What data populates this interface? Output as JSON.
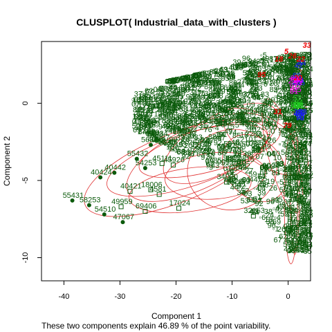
{
  "chart_data": {
    "type": "scatter",
    "title": "CLUSPLOT( Industrial_data_with_clusters )",
    "xlabel": "Component 1",
    "ylabel": "Component 2",
    "subtitle": "These two components explain 46.89 % of the point variability.",
    "xlim": [
      -44,
      4
    ],
    "ylim": [
      -11.5,
      4
    ],
    "xticks": [
      -40,
      -30,
      -20,
      -10,
      0
    ],
    "yticks": [
      -10,
      -5,
      0
    ],
    "grid": false,
    "colors": {
      "points": "#0b5a0b",
      "ellipses": "#e03030",
      "cluster_labels": "#ee0000",
      "accent_blue": "#1a1aff",
      "accent_magenta": "#ff00ff",
      "accent_green": "#22cc22"
    },
    "labeled_points": [
      {
        "label": "55431",
        "x": -38.5,
        "y": -6.3,
        "marker": "circle"
      },
      {
        "label": "58253",
        "x": -35.5,
        "y": -6.6,
        "marker": "circle"
      },
      {
        "label": "54510",
        "x": -32.8,
        "y": -7.2,
        "marker": "circle"
      },
      {
        "label": "49959",
        "x": -29.8,
        "y": -6.7,
        "marker": "square"
      },
      {
        "label": "47067",
        "x": -29.5,
        "y": -7.7,
        "marker": "circle"
      },
      {
        "label": "40442",
        "x": -31.0,
        "y": -4.5,
        "marker": "circle"
      },
      {
        "label": "40421",
        "x": -28.2,
        "y": -5.7,
        "marker": "square"
      },
      {
        "label": "40424",
        "x": -33.5,
        "y": -4.8,
        "marker": "circle"
      },
      {
        "label": "55432",
        "x": -27.0,
        "y": -3.6,
        "marker": "circle"
      },
      {
        "label": "55434",
        "x": -23.5,
        "y": -2.3,
        "marker": "circle"
      },
      {
        "label": "5633",
        "x": -24.5,
        "y": -2.7,
        "marker": "circle"
      },
      {
        "label": "54253",
        "x": -25.5,
        "y": -4.2,
        "marker": "circle"
      },
      {
        "label": "18006",
        "x": -24.5,
        "y": -5.6,
        "marker": "square"
      },
      {
        "label": "69406",
        "x": -25.5,
        "y": -7.0,
        "marker": "square"
      },
      {
        "label": "17024",
        "x": -19.5,
        "y": -6.8,
        "marker": "square"
      },
      {
        "label": "4581",
        "x": -23.0,
        "y": -5.9,
        "marker": "square"
      },
      {
        "label": "45926",
        "x": -20.5,
        "y": -4.0,
        "marker": "square"
      },
      {
        "label": "45111",
        "x": -22.5,
        "y": -3.9,
        "marker": "square"
      },
      {
        "label": "32153",
        "x": -6.2,
        "y": -7.3,
        "marker": "square"
      },
      {
        "label": "23208",
        "x": -9.5,
        "y": -3.9,
        "marker": "square"
      },
      {
        "label": "34020",
        "x": -11.0,
        "y": -5.1,
        "marker": "square"
      }
    ],
    "cluster_labels": [
      "33",
      "5",
      "18",
      "26",
      "22",
      "95",
      "20",
      "31",
      "79"
    ],
    "summary": {
      "bottom_axis_ticks": "-40 -30 -20 -10 0",
      "left_axis_ticks": "-10 -5 0"
    }
  }
}
